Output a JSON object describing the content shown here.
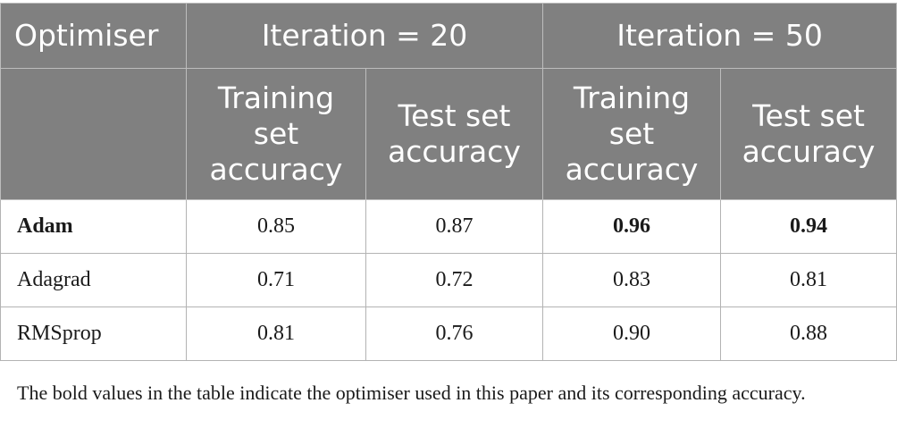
{
  "table": {
    "header_optimiser": "Optimiser",
    "groups": [
      "Iteration = 20",
      "Iteration = 50"
    ],
    "subheaders": [
      "Training set accuracy",
      "Test set accuracy",
      "Training set accuracy",
      "Test set accuracy"
    ],
    "rows": [
      {
        "name": "Adam",
        "values": [
          "0.85",
          "0.87",
          "0.96",
          "0.94"
        ]
      },
      {
        "name": "Adagrad",
        "values": [
          "0.71",
          "0.72",
          "0.83",
          "0.81"
        ]
      },
      {
        "name": "RMSprop",
        "values": [
          "0.81",
          "0.76",
          "0.90",
          "0.88"
        ]
      }
    ]
  },
  "footnote": "The bold values in the table indicate the optimiser used in this paper and its corresponding accuracy."
}
